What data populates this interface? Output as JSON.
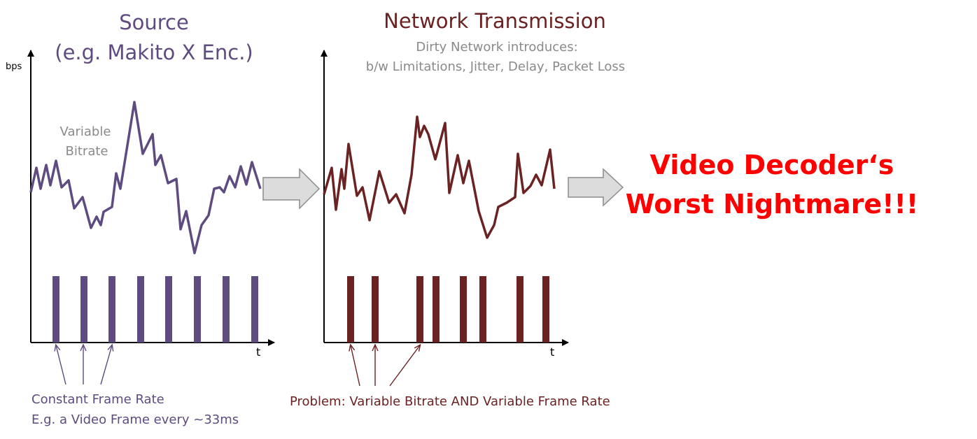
{
  "source": {
    "title_line1": "Source",
    "title_line2": "(e.g. Makito X Enc.)",
    "y_axis_label": "bps",
    "x_axis_label": "t",
    "bitrate_label_line1": "Variable",
    "bitrate_label_line2": "Bitrate",
    "caption_line1": "Constant Frame Rate",
    "caption_line2": "E.g. a Video Frame every ~33ms",
    "color": "#5e4b80"
  },
  "network": {
    "title": "Network Transmission",
    "subtitle_line1": "Dirty Network introduces:",
    "subtitle_line2": "b/w Limitations, Jitter, Delay, Packet Loss",
    "x_axis_label": "t",
    "caption": "Problem: Variable Bitrate AND Variable Frame Rate",
    "color": "#6b2222"
  },
  "outcome": {
    "line1": "Video Decoder‘s",
    "line2": "Worst Nightmare!!!",
    "color": "#ff0000"
  },
  "flow_arrow_color": "#dcdcdc"
}
